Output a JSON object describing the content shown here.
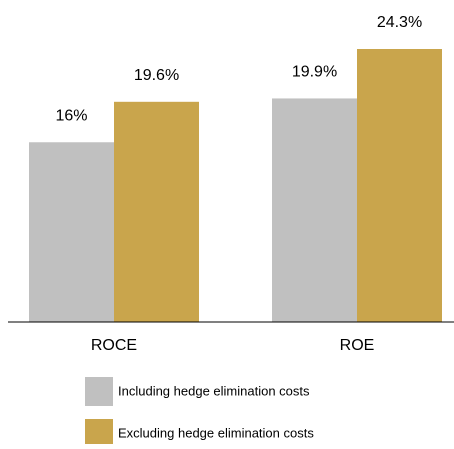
{
  "chart_data": {
    "type": "bar",
    "categories": [
      "ROCE",
      "ROE"
    ],
    "series": [
      {
        "name": "Including hedge elimination costs",
        "color": "#c0c0c0",
        "values": [
          16,
          19.9
        ],
        "value_labels": [
          "16%",
          "19.9%"
        ]
      },
      {
        "name": "Excluding hedge elimination costs",
        "color": "#c9a54c",
        "values": [
          19.6,
          24.3
        ],
        "value_labels": [
          "19.6%",
          "24.3%"
        ]
      }
    ]
  }
}
